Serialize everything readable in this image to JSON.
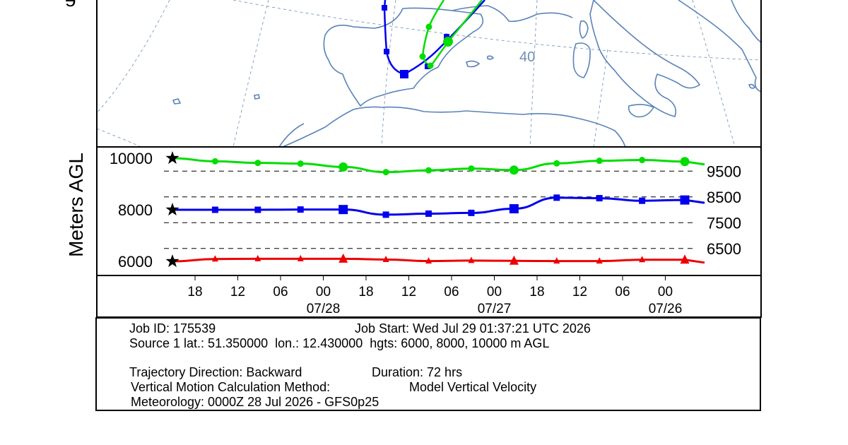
{
  "map": {
    "latitude_label": "40"
  },
  "chart_data": {
    "type": "line",
    "ylabel": "Meters AGL",
    "ytick_labels_left": [
      "10000",
      "8000",
      "6000"
    ],
    "ytick_labels_right": [
      "9500",
      "8500",
      "7500",
      "6500"
    ],
    "xaxis": {
      "hour_labels": [
        "18",
        "12",
        "06",
        "00",
        "18",
        "12",
        "06",
        "00",
        "18",
        "12",
        "06",
        "00"
      ],
      "date_labels": [
        "07/28",
        "07/27",
        "07/26"
      ],
      "direction": "time runs backward left to right (backward trajectory)"
    },
    "x_hours_back": [
      0,
      6,
      12,
      18,
      24,
      30,
      36,
      42,
      48,
      54,
      60,
      66,
      72
    ],
    "series": [
      {
        "height_m_agl": 10000,
        "color": "#00dd00",
        "marker": "circle",
        "values": [
          10000,
          9880,
          9820,
          9790,
          9660,
          9460,
          9530,
          9600,
          9540,
          9800,
          9900,
          9930,
          9870
        ]
      },
      {
        "height_m_agl": 8000,
        "color": "#0000ee",
        "marker": "square",
        "values": [
          8000,
          8000,
          8000,
          8010,
          8010,
          7810,
          7850,
          7880,
          8040,
          8470,
          8450,
          8350,
          8380
        ]
      },
      {
        "height_m_agl": 6000,
        "color": "#ee0000",
        "marker": "triangle",
        "values": [
          6000,
          6090,
          6100,
          6100,
          6100,
          6070,
          6010,
          6030,
          6020,
          6010,
          6010,
          6060,
          6060
        ]
      }
    ],
    "ylim": [
      5950,
      10250
    ],
    "grid": "dashed horizontal lines at 6500, 7500, 8500, 9500"
  },
  "info": {
    "job_id": "Job ID: 175539",
    "job_start": "Job Start: Wed Jul 29 01:37:21 UTC 2026",
    "source": "Source 1 lat.: 51.350000  lon.: 12.430000  hgts: 6000, 8000, 10000 m AGL",
    "direction": "Trajectory Direction: Backward",
    "duration": "Duration: 72 hrs",
    "vertical_motion": "Vertical Motion Calculation Method:",
    "vertical_motion_value": "Model Vertical Velocity",
    "meteorology": "Meteorology: 0000Z 28 Jul 2026 - GFS0p25"
  }
}
